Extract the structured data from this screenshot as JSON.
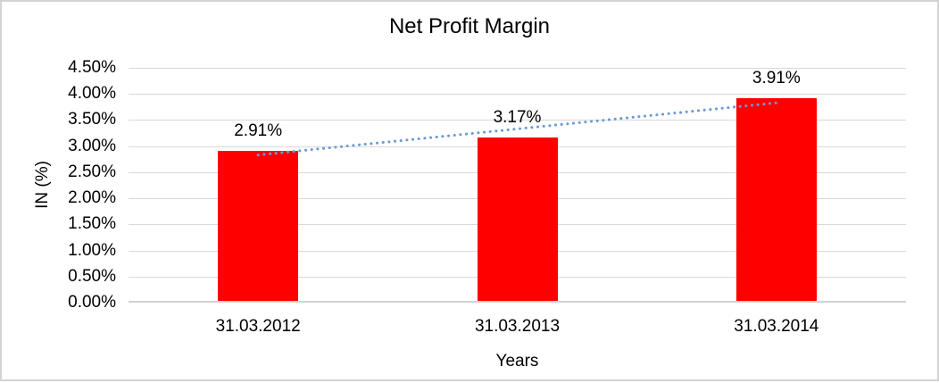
{
  "chart_data": {
    "type": "bar",
    "title": "Net Profit Margin",
    "xlabel": "Years",
    "ylabel": "IN (%)",
    "categories": [
      "31.03.2012",
      "31.03.2013",
      "31.03.2014"
    ],
    "series": [
      {
        "name": "Net Profit Margin",
        "values": [
          2.91,
          3.17,
          3.91
        ]
      }
    ],
    "value_labels": [
      "2.91%",
      "3.17%",
      "3.91%"
    ],
    "ylim": [
      0,
      4.5
    ],
    "ytick_step": 0.5,
    "ytick_labels": [
      "0.00%",
      "0.50%",
      "1.00%",
      "1.50%",
      "2.00%",
      "2.50%",
      "3.00%",
      "3.50%",
      "4.00%",
      "4.50%"
    ],
    "grid": true,
    "legend": "none",
    "trendline": {
      "type": "linear",
      "style": "dotted"
    },
    "colors": {
      "bar": "#FF0000",
      "trendline": "#6B9BD3",
      "gridline": "#D9D9D9",
      "axis_line": "#D2D2D2",
      "frame_border": "#D3D3D3",
      "text": "#000000",
      "background": "#FFFFFF"
    }
  }
}
